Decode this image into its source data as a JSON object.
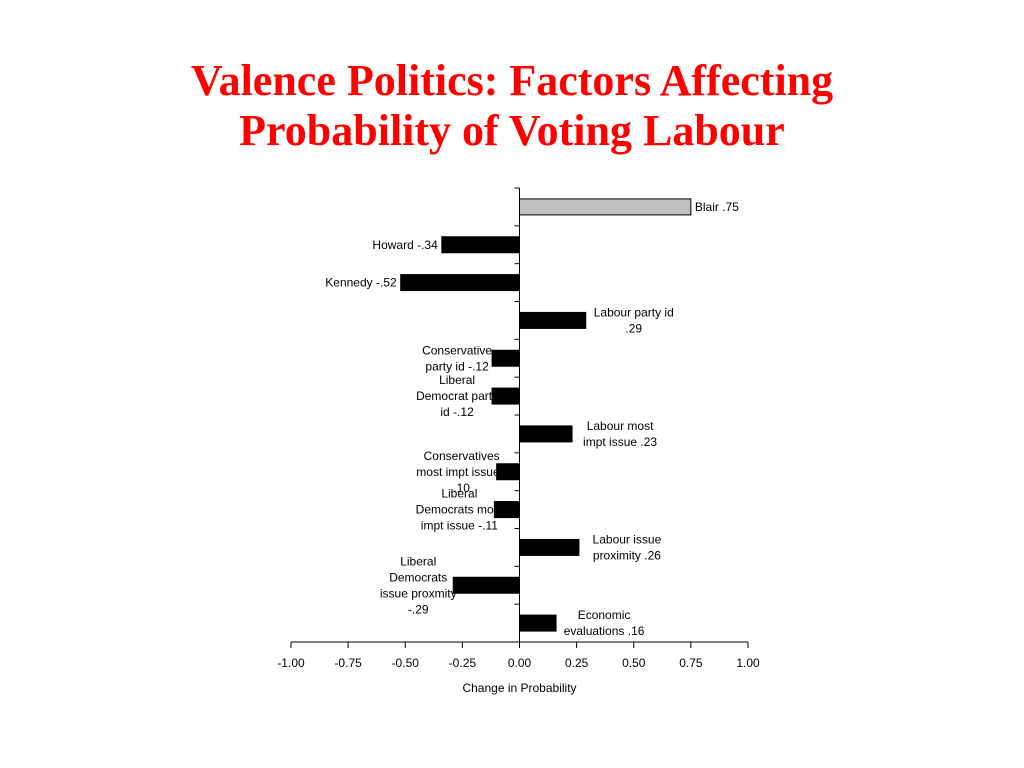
{
  "slide": {
    "title_line1": "Valence Politics:  Factors Affecting",
    "title_line2": "Probability of Voting Labour"
  },
  "chart_data": {
    "type": "bar",
    "orientation": "horizontal",
    "title": "",
    "xlabel": "Change in Probability",
    "ylabel": "",
    "xlim": [
      -1.0,
      1.0
    ],
    "xticks": [
      "-1.00",
      "-0.75",
      "-0.50",
      "-0.25",
      "0.00",
      "0.25",
      "0.50",
      "0.75",
      "1.00"
    ],
    "grid": false,
    "legend": "none",
    "highlight_color": "#c0c0c0",
    "bar_color": "#000000",
    "bars": [
      {
        "label": [
          "Blair .75"
        ],
        "value": 0.75,
        "highlight": true
      },
      {
        "label": [
          "Howard -.34"
        ],
        "value": -0.34
      },
      {
        "label": [
          "Kennedy -.52"
        ],
        "value": -0.52
      },
      {
        "label": [
          "Labour party id",
          ".29"
        ],
        "value": 0.29
      },
      {
        "label": [
          "Conservative",
          "party id -.12"
        ],
        "value": -0.12
      },
      {
        "label": [
          "Liberal",
          "Democrat party",
          "id -.12"
        ],
        "value": -0.12
      },
      {
        "label": [
          "Labour most",
          "impt issue .23"
        ],
        "value": 0.23
      },
      {
        "label": [
          "Conservatives",
          "most impt issue -",
          ".10"
        ],
        "value": -0.1
      },
      {
        "label": [
          "Liberal",
          "Democrats most",
          "impt issue -.11"
        ],
        "value": -0.11
      },
      {
        "label": [
          "Labour issue",
          "proximity .26"
        ],
        "value": 0.26
      },
      {
        "label": [
          "Liberal",
          "Democrats",
          "issue proxmity",
          "-.29"
        ],
        "value": -0.29
      },
      {
        "label": [
          "Economic",
          "evaluations .16"
        ],
        "value": 0.16
      }
    ]
  }
}
